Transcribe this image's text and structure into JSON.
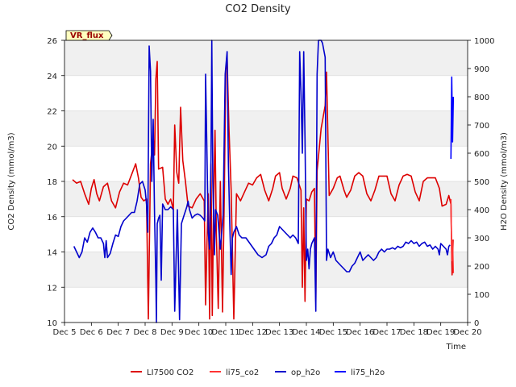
{
  "chart_data": {
    "type": "line",
    "title": "CO2 Density",
    "xlabel": "Time",
    "ylabel": "CO2 Density (mmol/m3)",
    "y2label": "H2O Density (mmol/m3)",
    "xlim": [
      5,
      20
    ],
    "ylim": [
      10,
      26
    ],
    "y2lim": [
      0,
      1000
    ],
    "x_ticks": [
      5,
      6,
      7,
      8,
      9,
      10,
      11,
      12,
      13,
      14,
      15,
      16,
      17,
      18,
      19,
      20
    ],
    "x_tick_labels": [
      "Dec 5",
      "Dec 6",
      "Dec 7",
      "Dec 8",
      "Dec 9",
      "Dec 10",
      "Dec 11",
      "Dec 12",
      "Dec 13",
      "Dec 14",
      "Dec 15",
      "Dec 16",
      "Dec 17",
      "Dec 18",
      "Dec 19",
      "Dec 20"
    ],
    "y_ticks": [
      10,
      12,
      14,
      16,
      18,
      20,
      22,
      24,
      26
    ],
    "y2_ticks": [
      0,
      100,
      200,
      300,
      400,
      500,
      600,
      700,
      800,
      900,
      1000
    ],
    "banded_background": true,
    "grid": true,
    "annotation": "VR_flux",
    "legend": [
      "LI7500 CO2",
      "li75_co2",
      "op_h2o",
      "li75_h2o"
    ],
    "legend_placement": "bottom-center",
    "series": [
      {
        "name": "LI7500 CO2",
        "axis": "left",
        "color": "#dd0000",
        "points": [
          [
            5.3,
            18.1
          ],
          [
            5.45,
            17.9
          ],
          [
            5.6,
            18.0
          ],
          [
            5.75,
            17.3
          ],
          [
            5.9,
            16.7
          ],
          [
            6.0,
            17.6
          ],
          [
            6.1,
            18.1
          ],
          [
            6.2,
            17.3
          ],
          [
            6.3,
            16.9
          ],
          [
            6.45,
            17.7
          ],
          [
            6.6,
            17.9
          ],
          [
            6.75,
            16.9
          ],
          [
            6.9,
            16.5
          ],
          [
            7.05,
            17.4
          ],
          [
            7.2,
            17.9
          ],
          [
            7.35,
            17.8
          ],
          [
            7.5,
            18.4
          ],
          [
            7.65,
            19.0
          ],
          [
            7.75,
            18.2
          ],
          [
            7.85,
            17.1
          ],
          [
            7.95,
            16.9
          ],
          [
            8.05,
            17.0
          ],
          [
            8.12,
            10.2
          ],
          [
            8.2,
            19.0
          ],
          [
            8.3,
            20.5
          ],
          [
            8.35,
            19.5
          ],
          [
            8.4,
            23.8
          ],
          [
            8.45,
            24.8
          ],
          [
            8.5,
            18.7
          ],
          [
            8.65,
            18.8
          ],
          [
            8.75,
            17.0
          ],
          [
            8.85,
            16.7
          ],
          [
            8.95,
            17.0
          ],
          [
            9.05,
            16.4
          ],
          [
            9.1,
            21.2
          ],
          [
            9.18,
            18.5
          ],
          [
            9.25,
            17.9
          ],
          [
            9.32,
            22.2
          ],
          [
            9.4,
            19.2
          ],
          [
            9.5,
            18.0
          ],
          [
            9.6,
            16.6
          ],
          [
            9.75,
            16.5
          ],
          [
            9.9,
            17.0
          ],
          [
            10.05,
            17.3
          ],
          [
            10.2,
            16.9
          ],
          [
            10.25,
            11.0
          ],
          [
            10.3,
            14.5
          ],
          [
            10.35,
            17.3
          ],
          [
            10.4,
            10.2
          ],
          [
            10.45,
            19.0
          ],
          [
            10.5,
            10.4
          ],
          [
            10.55,
            17.0
          ],
          [
            10.6,
            20.9
          ],
          [
            10.65,
            15.2
          ],
          [
            10.72,
            10.8
          ],
          [
            10.8,
            18.0
          ],
          [
            10.88,
            10.6
          ],
          [
            10.95,
            17.5
          ],
          [
            11.0,
            24.3
          ],
          [
            11.05,
            25.0
          ],
          [
            11.12,
            21.0
          ],
          [
            11.2,
            17.5
          ],
          [
            11.3,
            10.2
          ],
          [
            11.4,
            17.3
          ],
          [
            11.55,
            16.9
          ],
          [
            11.7,
            17.4
          ],
          [
            11.85,
            17.9
          ],
          [
            12.0,
            17.8
          ],
          [
            12.15,
            18.2
          ],
          [
            12.3,
            18.4
          ],
          [
            12.45,
            17.5
          ],
          [
            12.6,
            16.9
          ],
          [
            12.75,
            17.6
          ],
          [
            12.85,
            18.3
          ],
          [
            13.0,
            18.5
          ],
          [
            13.1,
            17.6
          ],
          [
            13.25,
            17.0
          ],
          [
            13.4,
            17.6
          ],
          [
            13.5,
            18.3
          ],
          [
            13.65,
            18.2
          ],
          [
            13.8,
            17.5
          ],
          [
            13.85,
            12.0
          ],
          [
            13.9,
            16.5
          ],
          [
            13.95,
            11.2
          ],
          [
            14.0,
            17.0
          ],
          [
            14.1,
            16.9
          ],
          [
            14.2,
            17.4
          ],
          [
            14.3,
            17.6
          ],
          [
            14.35,
            11.2
          ],
          [
            14.4,
            18.6
          ],
          [
            14.55,
            21.0
          ],
          [
            14.7,
            22.3
          ],
          [
            14.75,
            24.2
          ],
          [
            14.85,
            17.2
          ],
          [
            15.0,
            17.6
          ],
          [
            15.15,
            18.2
          ],
          [
            15.25,
            18.3
          ],
          [
            15.4,
            17.5
          ],
          [
            15.5,
            17.1
          ],
          [
            15.65,
            17.5
          ],
          [
            15.8,
            18.3
          ],
          [
            15.95,
            18.5
          ],
          [
            16.1,
            18.3
          ],
          [
            16.25,
            17.3
          ],
          [
            16.4,
            16.9
          ],
          [
            16.55,
            17.5
          ],
          [
            16.7,
            18.3
          ],
          [
            16.85,
            18.3
          ],
          [
            17.0,
            18.3
          ],
          [
            17.15,
            17.3
          ],
          [
            17.3,
            16.9
          ],
          [
            17.45,
            17.8
          ],
          [
            17.6,
            18.3
          ],
          [
            17.75,
            18.4
          ],
          [
            17.9,
            18.3
          ],
          [
            18.05,
            17.4
          ],
          [
            18.2,
            16.9
          ],
          [
            18.35,
            18.0
          ],
          [
            18.5,
            18.2
          ],
          [
            18.65,
            18.2
          ],
          [
            18.8,
            18.2
          ],
          [
            18.95,
            17.6
          ],
          [
            19.05,
            16.6
          ],
          [
            19.2,
            16.7
          ],
          [
            19.3,
            17.2
          ],
          [
            19.38,
            16.7
          ],
          [
            19.42,
            12.7
          ],
          [
            19.46,
            14.7
          ]
        ]
      },
      {
        "name": "li75_co2",
        "axis": "left",
        "color": "#ff3333",
        "points": [
          [
            19.38,
            17.0
          ],
          [
            19.41,
            13.5
          ],
          [
            19.44,
            14.6
          ],
          [
            19.47,
            12.8
          ]
        ]
      },
      {
        "name": "op_h2o",
        "axis": "right",
        "color": "#0000cc",
        "points": [
          [
            5.35,
            270
          ],
          [
            5.45,
            250
          ],
          [
            5.55,
            230
          ],
          [
            5.65,
            250
          ],
          [
            5.75,
            300
          ],
          [
            5.85,
            285
          ],
          [
            5.95,
            320
          ],
          [
            6.05,
            335
          ],
          [
            6.15,
            320
          ],
          [
            6.25,
            300
          ],
          [
            6.35,
            300
          ],
          [
            6.45,
            280
          ],
          [
            6.5,
            230
          ],
          [
            6.55,
            290
          ],
          [
            6.6,
            230
          ],
          [
            6.7,
            245
          ],
          [
            6.8,
            280
          ],
          [
            6.9,
            310
          ],
          [
            7.0,
            305
          ],
          [
            7.1,
            340
          ],
          [
            7.2,
            360
          ],
          [
            7.3,
            370
          ],
          [
            7.4,
            380
          ],
          [
            7.5,
            390
          ],
          [
            7.6,
            390
          ],
          [
            7.7,
            430
          ],
          [
            7.8,
            490
          ],
          [
            7.9,
            500
          ],
          [
            8.0,
            470
          ],
          [
            8.05,
            420
          ],
          [
            8.1,
            320
          ],
          [
            8.15,
            980
          ],
          [
            8.2,
            890
          ],
          [
            8.25,
            500
          ],
          [
            8.3,
            720
          ],
          [
            8.35,
            380
          ],
          [
            8.4,
            150
          ],
          [
            8.42,
            0
          ],
          [
            8.45,
            350
          ],
          [
            8.5,
            370
          ],
          [
            8.55,
            380
          ],
          [
            8.6,
            150
          ],
          [
            8.65,
            420
          ],
          [
            8.75,
            400
          ],
          [
            8.85,
            400
          ],
          [
            8.95,
            410
          ],
          [
            9.05,
            400
          ],
          [
            9.1,
            40
          ],
          [
            9.2,
            400
          ],
          [
            9.28,
            10
          ],
          [
            9.35,
            350
          ],
          [
            9.45,
            380
          ],
          [
            9.55,
            410
          ],
          [
            9.6,
            430
          ],
          [
            9.65,
            400
          ],
          [
            9.75,
            370
          ],
          [
            9.85,
            380
          ],
          [
            9.95,
            385
          ],
          [
            10.05,
            380
          ],
          [
            10.15,
            370
          ],
          [
            10.22,
            360
          ],
          [
            10.25,
            880
          ],
          [
            10.3,
            600
          ],
          [
            10.35,
            320
          ],
          [
            10.4,
            260
          ],
          [
            10.45,
            580
          ],
          [
            10.48,
            1000
          ],
          [
            10.52,
            500
          ],
          [
            10.58,
            240
          ],
          [
            10.62,
            400
          ],
          [
            10.7,
            380
          ],
          [
            10.8,
            260
          ],
          [
            10.9,
            380
          ],
          [
            10.98,
            880
          ],
          [
            11.05,
            960
          ],
          [
            11.1,
            560
          ],
          [
            11.15,
            350
          ],
          [
            11.2,
            170
          ],
          [
            11.25,
            300
          ],
          [
            11.3,
            320
          ],
          [
            11.4,
            340
          ],
          [
            11.5,
            310
          ],
          [
            11.6,
            300
          ],
          [
            11.75,
            300
          ],
          [
            11.9,
            280
          ],
          [
            12.05,
            260
          ],
          [
            12.2,
            240
          ],
          [
            12.35,
            230
          ],
          [
            12.5,
            240
          ],
          [
            12.6,
            270
          ],
          [
            12.7,
            280
          ],
          [
            12.8,
            300
          ],
          [
            12.9,
            310
          ],
          [
            13.0,
            340
          ],
          [
            13.1,
            330
          ],
          [
            13.2,
            320
          ],
          [
            13.3,
            310
          ],
          [
            13.4,
            300
          ],
          [
            13.5,
            310
          ],
          [
            13.6,
            300
          ],
          [
            13.7,
            280
          ],
          [
            13.75,
            960
          ],
          [
            13.8,
            820
          ],
          [
            13.85,
            600
          ],
          [
            13.9,
            960
          ],
          [
            13.95,
            650
          ],
          [
            14.0,
            220
          ],
          [
            14.05,
            260
          ],
          [
            14.1,
            190
          ],
          [
            14.15,
            260
          ],
          [
            14.2,
            280
          ],
          [
            14.3,
            300
          ],
          [
            14.35,
            40
          ],
          [
            14.4,
            880
          ],
          [
            14.45,
            1000
          ],
          [
            14.55,
            1000
          ],
          [
            14.6,
            990
          ],
          [
            14.7,
            940
          ],
          [
            14.75,
            220
          ],
          [
            14.8,
            260
          ],
          [
            14.9,
            230
          ],
          [
            15.0,
            250
          ],
          [
            15.1,
            220
          ],
          [
            15.2,
            210
          ],
          [
            15.3,
            200
          ],
          [
            15.4,
            190
          ],
          [
            15.5,
            180
          ],
          [
            15.6,
            180
          ],
          [
            15.7,
            200
          ],
          [
            15.8,
            210
          ],
          [
            15.9,
            230
          ],
          [
            16.0,
            250
          ],
          [
            16.1,
            220
          ],
          [
            16.2,
            230
          ],
          [
            16.3,
            240
          ],
          [
            16.4,
            230
          ],
          [
            16.5,
            220
          ],
          [
            16.6,
            230
          ],
          [
            16.7,
            250
          ],
          [
            16.8,
            260
          ],
          [
            16.9,
            250
          ],
          [
            17.0,
            260
          ],
          [
            17.1,
            260
          ],
          [
            17.2,
            265
          ],
          [
            17.3,
            260
          ],
          [
            17.4,
            270
          ],
          [
            17.5,
            265
          ],
          [
            17.6,
            270
          ],
          [
            17.7,
            285
          ],
          [
            17.8,
            280
          ],
          [
            17.9,
            290
          ],
          [
            18.0,
            280
          ],
          [
            18.1,
            285
          ],
          [
            18.2,
            270
          ],
          [
            18.3,
            280
          ],
          [
            18.4,
            285
          ],
          [
            18.5,
            270
          ],
          [
            18.6,
            275
          ],
          [
            18.7,
            260
          ],
          [
            18.8,
            270
          ],
          [
            18.9,
            260
          ],
          [
            18.95,
            240
          ],
          [
            19.0,
            280
          ],
          [
            19.1,
            270
          ],
          [
            19.2,
            260
          ],
          [
            19.25,
            240
          ],
          [
            19.3,
            270
          ],
          [
            19.35,
            275
          ]
        ]
      },
      {
        "name": "li75_h2o",
        "axis": "right",
        "color": "#0000ff",
        "points": [
          [
            19.38,
            580
          ],
          [
            19.41,
            870
          ],
          [
            19.44,
            640
          ],
          [
            19.47,
            800
          ]
        ]
      }
    ]
  }
}
